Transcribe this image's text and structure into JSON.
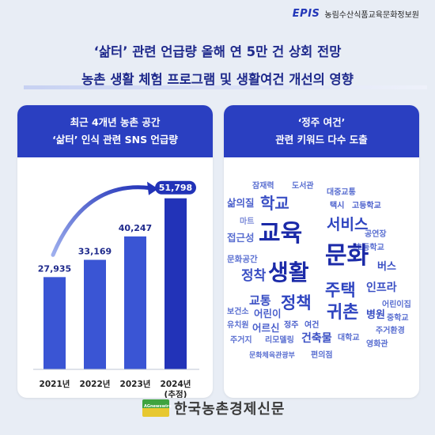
{
  "brand": {
    "mark": "EPIS",
    "name": "농림수산식품교육문화정보원"
  },
  "headline": {
    "line1": "‘삶터’ 관련 언급량 올해 연 5만 건 상회 전망",
    "line2": "농촌 생활 체험 프로그램 및 생활여건 개선의 영향"
  },
  "left_panel": {
    "title1": "최근 4개년 농촌 공간",
    "title2": "‘삶터’ 인식 관련 SNS 언급량"
  },
  "right_panel": {
    "title1": "‘정주 여건’",
    "title2": "관련 키워드 다수 도출"
  },
  "colors": {
    "accent": "#2a3fc1",
    "bar": "#3a55d4",
    "bar_highlight": "#2233b8",
    "headline": "#1f2a8c"
  },
  "chart_data": {
    "type": "bar",
    "categories": [
      "2021년",
      "2022년",
      "2023년",
      "2024년\n(추정)"
    ],
    "category_lines": [
      [
        "2021년"
      ],
      [
        "2022년"
      ],
      [
        "2023년"
      ],
      [
        "2024년",
        "(추정)"
      ]
    ],
    "values": [
      27935,
      33169,
      40247,
      51798
    ],
    "value_labels": [
      "27,935",
      "33,169",
      "40,247",
      "51,798"
    ],
    "highlight_index": 3,
    "ylim": [
      0,
      57000
    ],
    "grid": false,
    "trend_arrow": true
  },
  "word_cloud": [
    {
      "text": "잠재력",
      "color": "#5a6fd1",
      "weight": 1
    },
    {
      "text": "도서관",
      "color": "#5a6fd1",
      "weight": 1
    },
    {
      "text": "대중교통",
      "color": "#5a6fd1",
      "weight": 1
    },
    {
      "text": "삶의질",
      "color": "#4a5fcc",
      "weight": 2
    },
    {
      "text": "학교",
      "color": "#3a4fc4",
      "weight": 3
    },
    {
      "text": "택시",
      "color": "#4a5fcc",
      "weight": 1
    },
    {
      "text": "고등학교",
      "color": "#4a5fcc",
      "weight": 1
    },
    {
      "text": "마트",
      "color": "#7b8ad8",
      "weight": 1
    },
    {
      "text": "서비스",
      "color": "#2e44c0",
      "weight": 4
    },
    {
      "text": "접근성",
      "color": "#5a6fd1",
      "weight": 2
    },
    {
      "text": "교육",
      "color": "#1b2aa8",
      "weight": 6
    },
    {
      "text": "공연장",
      "color": "#5a6fd1",
      "weight": 1
    },
    {
      "text": "초등학교",
      "color": "#5a6fd1",
      "weight": 1
    },
    {
      "text": "문화공간",
      "color": "#5a6fd1",
      "weight": 1
    },
    {
      "text": "문화",
      "color": "#1b2aa8",
      "weight": 6
    },
    {
      "text": "버스",
      "color": "#3a4fc4",
      "weight": 2
    },
    {
      "text": "정착",
      "color": "#3a4fc4",
      "weight": 3
    },
    {
      "text": "생활",
      "color": "#1b2aa8",
      "weight": 6
    },
    {
      "text": "주택",
      "color": "#2e44c0",
      "weight": 4
    },
    {
      "text": "인프라",
      "color": "#3a4fc4",
      "weight": 2
    },
    {
      "text": "교통",
      "color": "#3a4fc4",
      "weight": 3
    },
    {
      "text": "정책",
      "color": "#2e44c0",
      "weight": 4
    },
    {
      "text": "어린이집",
      "color": "#5a6fd1",
      "weight": 1
    },
    {
      "text": "보건소",
      "color": "#5a6fd1",
      "weight": 1
    },
    {
      "text": "어린이",
      "color": "#4a5fcc",
      "weight": 2
    },
    {
      "text": "귀촌",
      "color": "#2e44c0",
      "weight": 4
    },
    {
      "text": "병원",
      "color": "#3a4fc4",
      "weight": 2
    },
    {
      "text": "중학교",
      "color": "#5a6fd1",
      "weight": 1
    },
    {
      "text": "유치원",
      "color": "#5a6fd1",
      "weight": 1
    },
    {
      "text": "정주",
      "color": "#4a5fcc",
      "weight": 1
    },
    {
      "text": "여건",
      "color": "#4a5fcc",
      "weight": 1
    },
    {
      "text": "어르신",
      "color": "#4a5fcc",
      "weight": 2
    },
    {
      "text": "주거환경",
      "color": "#5a6fd1",
      "weight": 1
    },
    {
      "text": "주거지",
      "color": "#5a6fd1",
      "weight": 1
    },
    {
      "text": "리모델링",
      "color": "#5a6fd1",
      "weight": 1
    },
    {
      "text": "건축물",
      "color": "#3a4fc4",
      "weight": 2
    },
    {
      "text": "대학교",
      "color": "#5a6fd1",
      "weight": 1
    },
    {
      "text": "영화관",
      "color": "#5a6fd1",
      "weight": 1
    },
    {
      "text": "문화체육관광부",
      "color": "#5a6fd1",
      "weight": 1
    },
    {
      "text": "편의점",
      "color": "#5a6fd1",
      "weight": 1
    }
  ],
  "footer": {
    "flag_text": "AGnewswire",
    "publisher": "한국농촌경제신문"
  }
}
